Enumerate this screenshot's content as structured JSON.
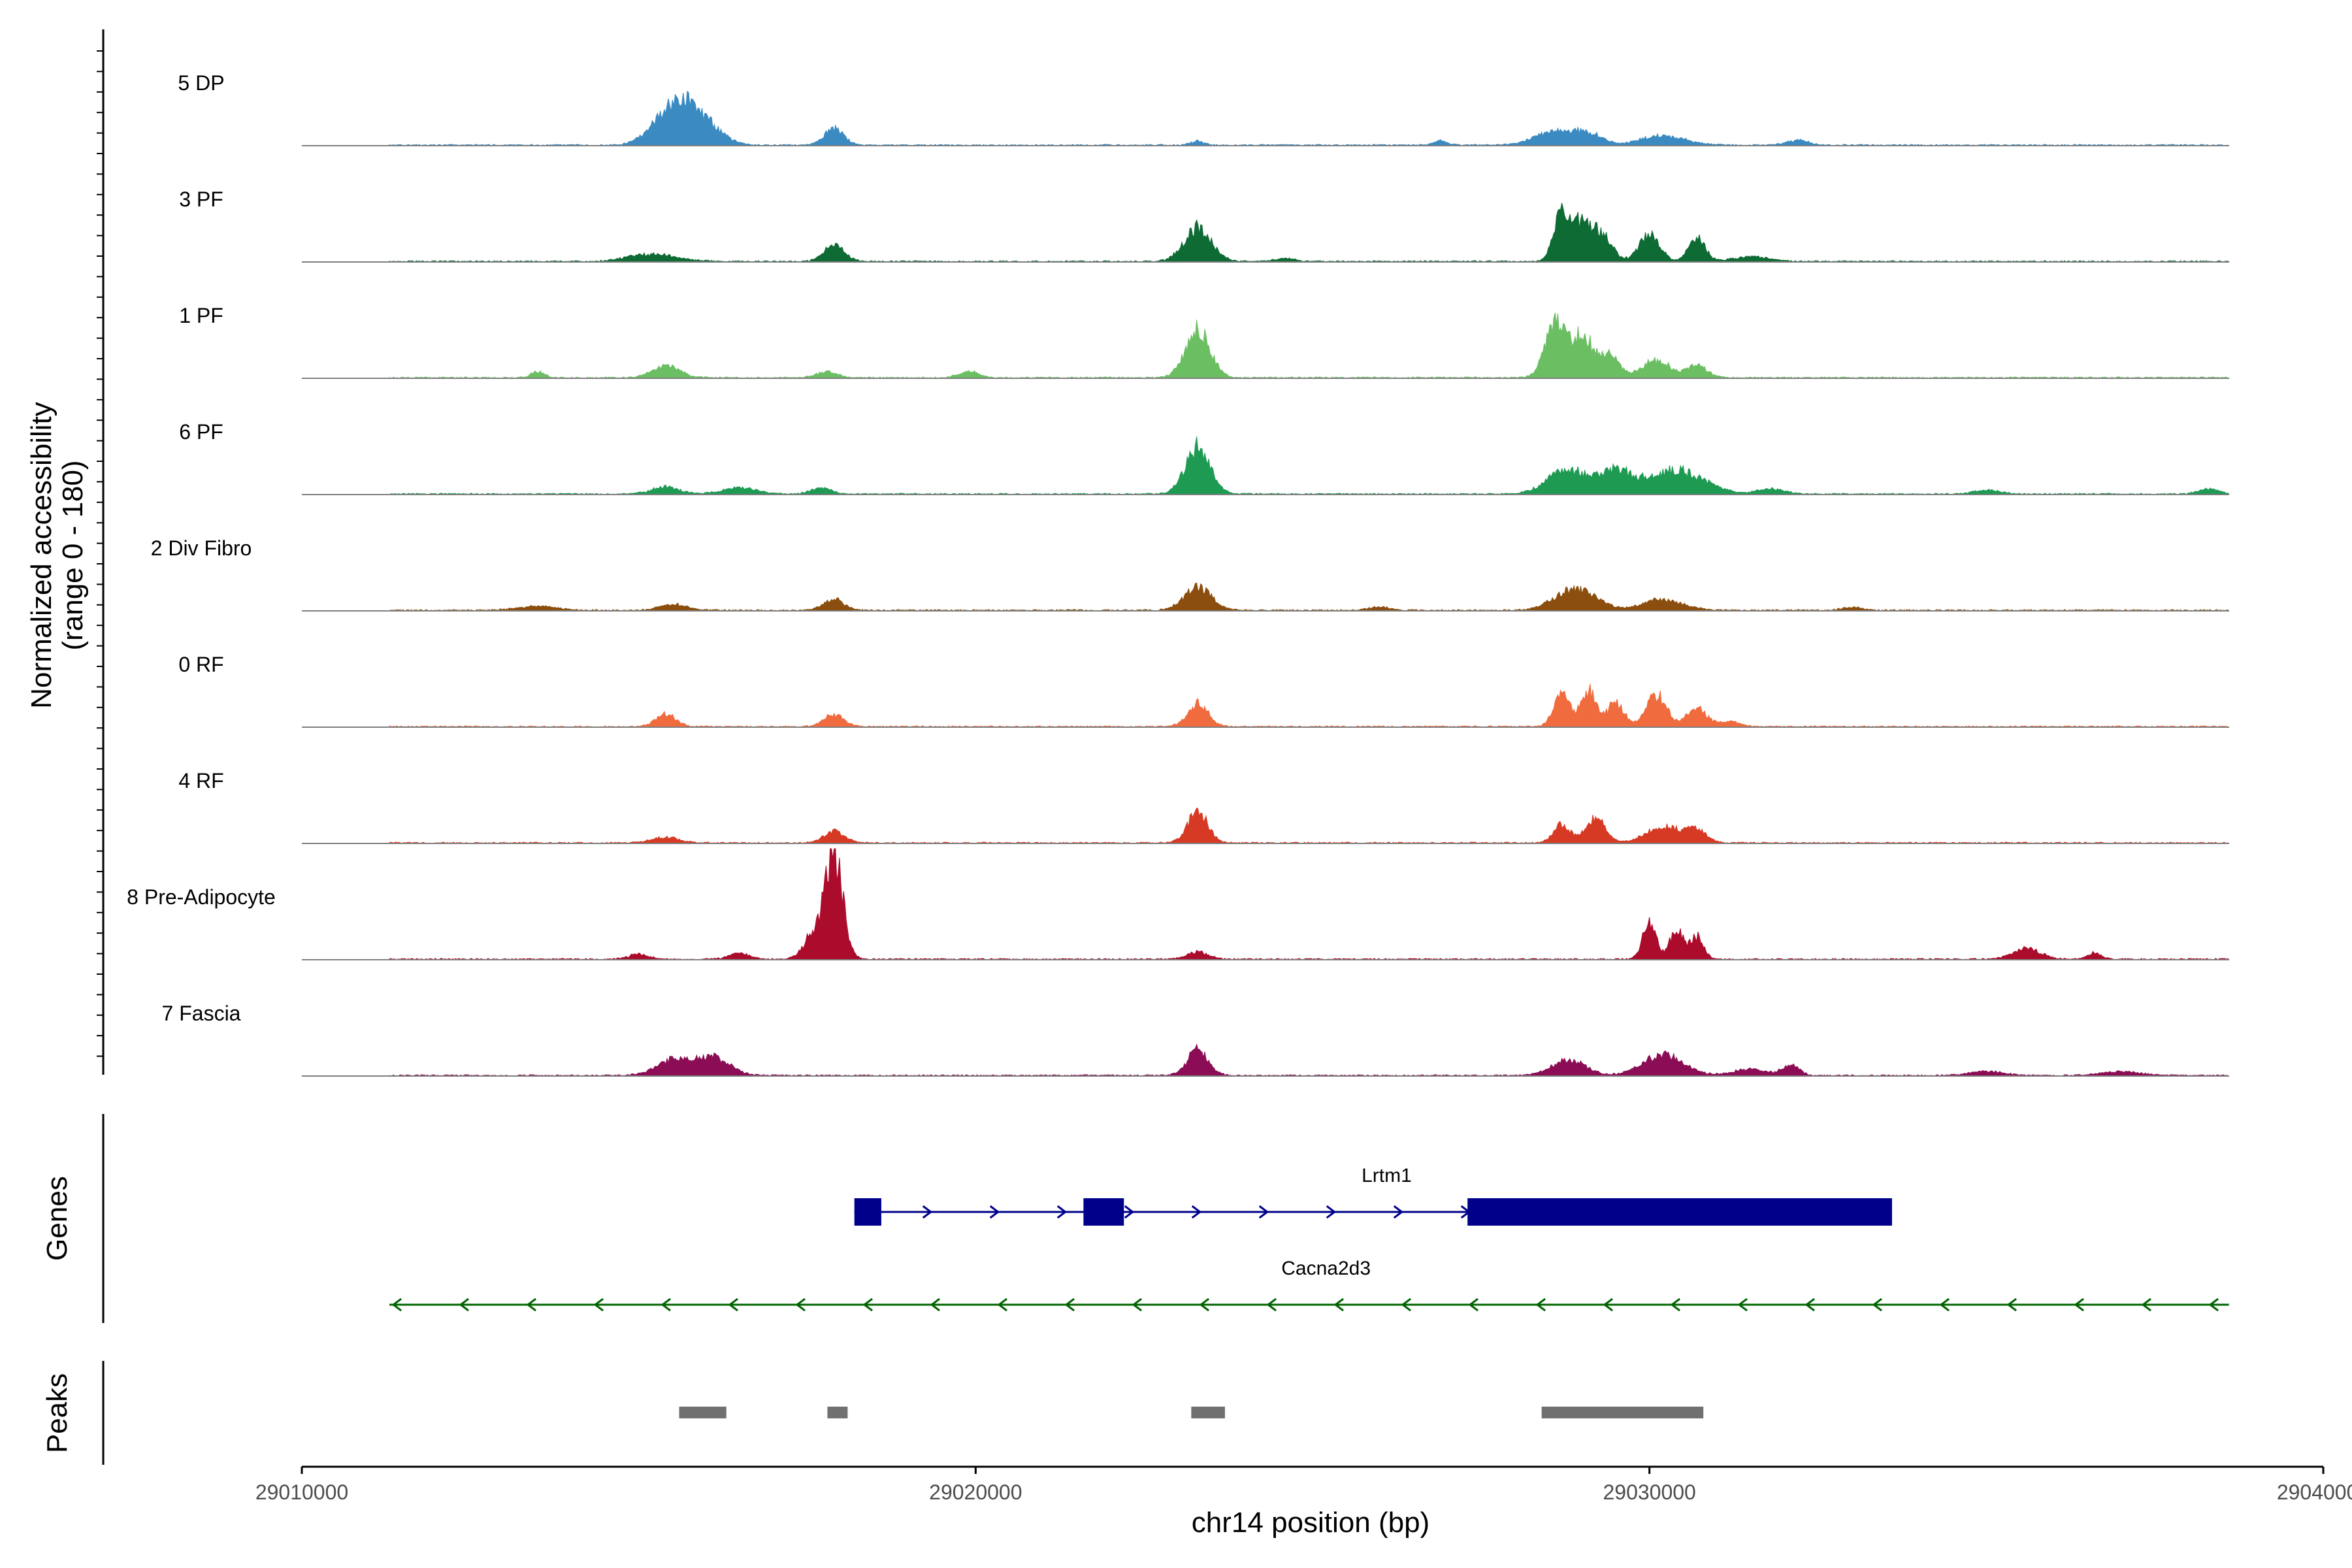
{
  "chart_data": {
    "type": "area",
    "title": "",
    "ylabel": "Normalized accessibility",
    "ylabel_range": "(range 0 - 180)",
    "ylim": [
      0,
      180
    ],
    "xlabel": "chr14 position (bp)",
    "xlim": [
      29010000,
      29040000
    ],
    "x_ticks": [
      29010000,
      29020000,
      29030000,
      29040000
    ],
    "x_tick_labels": [
      "29010000",
      "29020000",
      "29030000",
      "29040000"
    ],
    "coverage_range": [
      29011300,
      29038600
    ],
    "tracks": [
      {
        "name": "5 DP",
        "color": "#3b8bc2",
        "peaks": [
          [
            29015400,
            45,
            250
          ],
          [
            29015700,
            38,
            220
          ],
          [
            29016000,
            30,
            250
          ],
          [
            29017900,
            28,
            140
          ],
          [
            29023300,
            6,
            100
          ],
          [
            29026900,
            7,
            100
          ],
          [
            29028600,
            22,
            300
          ],
          [
            29029100,
            17,
            200
          ],
          [
            29030200,
            16,
            320
          ],
          [
            29032200,
            9,
            150
          ]
        ]
      },
      {
        "name": "3 PF",
        "color": "#0f6b34",
        "peaks": [
          [
            29015200,
            12,
            350
          ],
          [
            29017900,
            28,
            150
          ],
          [
            29023300,
            56,
            200
          ],
          [
            29024600,
            5,
            150
          ],
          [
            29028700,
            75,
            120
          ],
          [
            29029000,
            60,
            150
          ],
          [
            29029300,
            40,
            150
          ],
          [
            29030000,
            45,
            150
          ],
          [
            29030700,
            40,
            120
          ],
          [
            29031500,
            8,
            250
          ]
        ]
      },
      {
        "name": "1 PF",
        "color": "#6bbf62",
        "peaks": [
          [
            29013500,
            10,
            100
          ],
          [
            29015400,
            20,
            200
          ],
          [
            29017800,
            10,
            150
          ],
          [
            29019900,
            10,
            150
          ],
          [
            29023300,
            80,
            180
          ],
          [
            29028600,
            90,
            150
          ],
          [
            29029000,
            70,
            150
          ],
          [
            29029400,
            40,
            150
          ],
          [
            29030100,
            30,
            200
          ],
          [
            29030700,
            20,
            150
          ]
        ]
      },
      {
        "name": "6 PF",
        "color": "#1e9a53",
        "peaks": [
          [
            29015400,
            12,
            200
          ],
          [
            29016500,
            10,
            250
          ],
          [
            29017700,
            10,
            150
          ],
          [
            29023300,
            80,
            180
          ],
          [
            29028800,
            40,
            300
          ],
          [
            29029500,
            35,
            250
          ],
          [
            29030400,
            40,
            400
          ],
          [
            29031800,
            8,
            200
          ],
          [
            29035000,
            6,
            200
          ],
          [
            29038300,
            8,
            150
          ]
        ]
      },
      {
        "name": "2 Div Fibro",
        "color": "#8b4e0f",
        "peaks": [
          [
            29013500,
            6,
            300
          ],
          [
            29015500,
            10,
            200
          ],
          [
            29017900,
            18,
            150
          ],
          [
            29023300,
            38,
            200
          ],
          [
            29028900,
            35,
            300
          ],
          [
            29030200,
            18,
            300
          ],
          [
            29026000,
            5,
            150
          ],
          [
            29033000,
            5,
            150
          ]
        ]
      },
      {
        "name": "0 RF",
        "color": "#f06b3e",
        "peaks": [
          [
            29015400,
            20,
            150
          ],
          [
            29017900,
            20,
            150
          ],
          [
            29023300,
            38,
            150
          ],
          [
            29028700,
            52,
            120
          ],
          [
            29029100,
            60,
            120
          ],
          [
            29029500,
            40,
            120
          ],
          [
            29030100,
            52,
            150
          ],
          [
            29030700,
            30,
            150
          ],
          [
            29031200,
            8,
            150
          ]
        ]
      },
      {
        "name": "4 RF",
        "color": "#d73a24",
        "peaks": [
          [
            29015400,
            9,
            200
          ],
          [
            29017900,
            20,
            150
          ],
          [
            29023300,
            50,
            150
          ],
          [
            29028700,
            32,
            120
          ],
          [
            29029200,
            40,
            150
          ],
          [
            29030200,
            28,
            250
          ],
          [
            29030700,
            20,
            150
          ]
        ]
      },
      {
        "name": "8 Pre-Adipocyte",
        "color": "#ac0c2c",
        "peaks": [
          [
            29017900,
            170,
            130
          ],
          [
            29017600,
            40,
            150
          ],
          [
            29015000,
            8,
            150
          ],
          [
            29016500,
            10,
            150
          ],
          [
            29023300,
            12,
            150
          ],
          [
            29030000,
            60,
            100
          ],
          [
            29030400,
            50,
            100
          ],
          [
            29030700,
            38,
            100
          ],
          [
            29035600,
            18,
            200
          ],
          [
            29036600,
            10,
            100
          ]
        ]
      },
      {
        "name": "7 Fascia",
        "color": "#8b0d56",
        "peaks": [
          [
            29015500,
            25,
            250
          ],
          [
            29016100,
            30,
            250
          ],
          [
            29023300,
            45,
            150
          ],
          [
            29028800,
            25,
            250
          ],
          [
            29030200,
            35,
            300
          ],
          [
            29031500,
            10,
            250
          ],
          [
            29032100,
            18,
            120
          ],
          [
            29035000,
            7,
            250
          ],
          [
            29037000,
            6,
            300
          ]
        ]
      }
    ],
    "genes": [
      {
        "name": "Lrtm1",
        "strand": "+",
        "color": "#00008b",
        "start": 29018200,
        "end": 29033600,
        "exons": [
          [
            29018200,
            29018600
          ],
          [
            29021600,
            29022200
          ],
          [
            29027300,
            29033600
          ]
        ]
      },
      {
        "name": "Cacna2d3",
        "strand": "-",
        "color": "#006400",
        "start": 29011300,
        "end": 29038600,
        "exons": []
      }
    ],
    "genes_label": "Genes",
    "peaks_label": "Peaks",
    "peak_regions": [
      [
        29015600,
        29016300
      ],
      [
        29017800,
        29018100
      ],
      [
        29023200,
        29023700
      ],
      [
        29028400,
        29030800
      ]
    ]
  }
}
